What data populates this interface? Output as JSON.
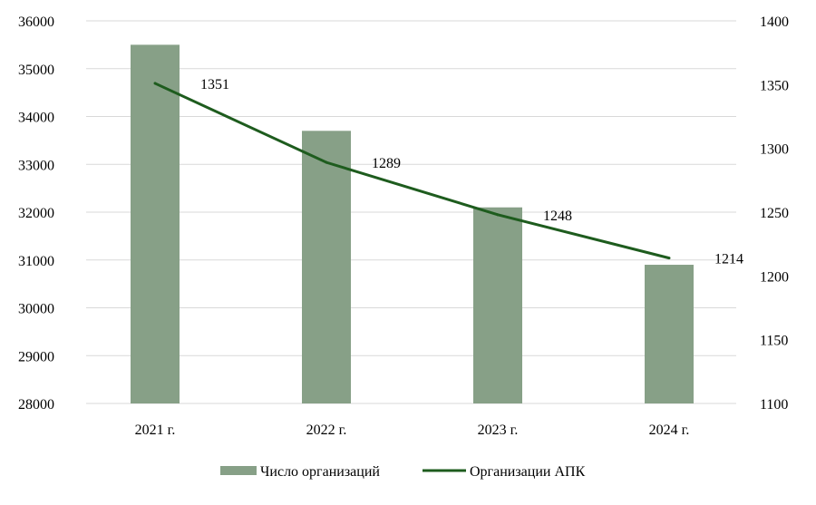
{
  "chart_data": {
    "type": "bar+line",
    "categories": [
      "2021 г.",
      "2022 г.",
      "2023 г.",
      "2024 г."
    ],
    "series": [
      {
        "name": "Число организаций",
        "type": "bar",
        "axis": "left",
        "color": "#87a087",
        "values": [
          35500,
          33700,
          32100,
          30900
        ]
      },
      {
        "name": "Организации АПК",
        "type": "line",
        "axis": "right",
        "color": "#1e5c1e",
        "values": [
          1351,
          1289,
          1248,
          1214
        ],
        "labels": [
          "1351",
          "1289",
          "1248",
          "1214"
        ]
      }
    ],
    "left_axis": {
      "ylim": [
        28000,
        36000
      ],
      "ticks": [
        "28000",
        "29000",
        "30000",
        "31000",
        "32000",
        "33000",
        "34000",
        "35000",
        "36000"
      ]
    },
    "right_axis": {
      "ylim": [
        1100,
        1400
      ],
      "ticks": [
        "1100",
        "1150",
        "1200",
        "1250",
        "1300",
        "1350",
        "1400"
      ]
    },
    "grid": true,
    "legend_position": "bottom"
  }
}
